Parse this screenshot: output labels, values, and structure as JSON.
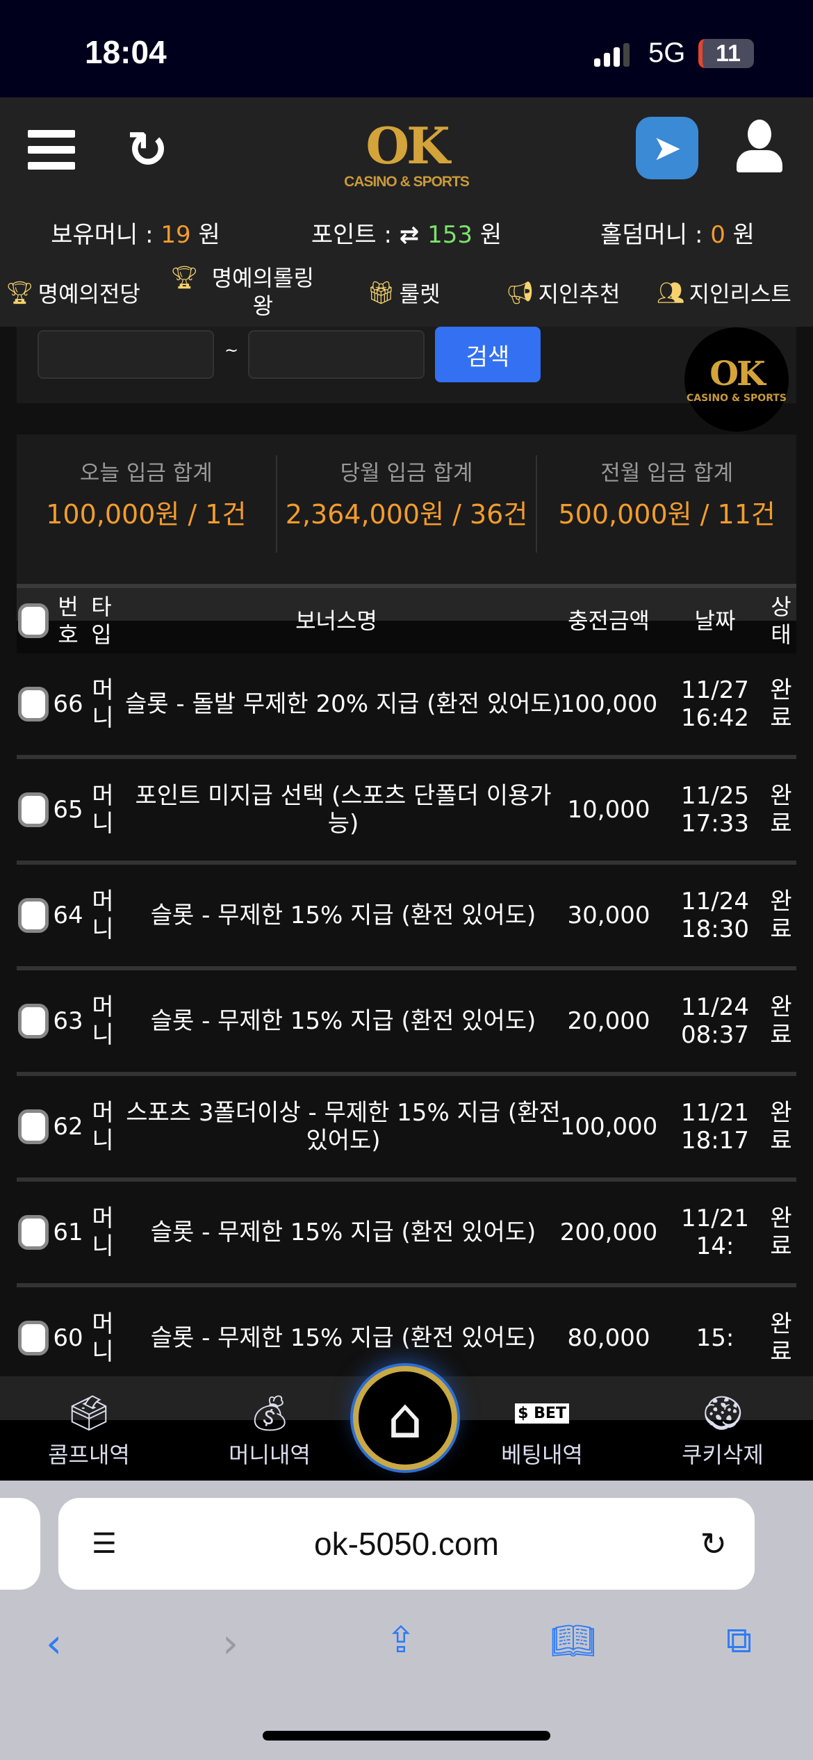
{
  "status_bar": {
    "time": "18:04",
    "network": "5G",
    "battery": "11"
  },
  "header": {
    "logo_text": "OK",
    "logo_sub": "CASINO & SPORTS"
  },
  "balances": [
    {
      "label": "보유머니 : ",
      "value": "19",
      "unit": " 원",
      "color": "#f39c2c"
    },
    {
      "label": "포인트 : ",
      "value": "153",
      "unit": " 원",
      "color": "#7be36b",
      "icon": "exchange-icon"
    },
    {
      "label": "홀덤머니 : ",
      "value": "0",
      "unit": " 원",
      "color": "#f39c2c"
    }
  ],
  "menu": [
    {
      "label": "명예의전당",
      "icon": "trophy-icon"
    },
    {
      "label": "명예의롤링왕",
      "icon": "trophy-icon"
    },
    {
      "label": "룰렛",
      "icon": "gift-icon"
    },
    {
      "label": "지인추천",
      "icon": "megaphone-icon"
    },
    {
      "label": "지인리스트",
      "icon": "users-icon"
    }
  ],
  "search": {
    "separator": "~",
    "button": "검색",
    "start_value": "",
    "end_value": ""
  },
  "summary": [
    {
      "label": "오늘 입금 합계",
      "value": "100,000원 / 1건"
    },
    {
      "label": "당월 입금 합계",
      "value": "2,364,000원 / 36건"
    },
    {
      "label": "전월 입금 합계",
      "value": "500,000원 / 11건"
    }
  ],
  "table": {
    "headers": {
      "no": "번호",
      "type": "타입",
      "name": "보너스명",
      "amount": "충전금액",
      "date": "날짜",
      "status": "상태"
    },
    "rows": [
      {
        "no": "66",
        "type": "머니",
        "name": "슬롯 - 돌발 무제한 20% 지급 (환전 있어도)",
        "amount": "100,000",
        "date": "11/27",
        "time": "16:42",
        "status": "완료"
      },
      {
        "no": "65",
        "type": "머니",
        "name": "포인트 미지급 선택 (스포츠 단폴더 이용가능)",
        "amount": "10,000",
        "date": "11/25",
        "time": "17:33",
        "status": "완료"
      },
      {
        "no": "64",
        "type": "머니",
        "name": "슬롯 - 무제한 15% 지급 (환전 있어도)",
        "amount": "30,000",
        "date": "11/24",
        "time": "18:30",
        "status": "완료"
      },
      {
        "no": "63",
        "type": "머니",
        "name": "슬롯 - 무제한 15% 지급 (환전 있어도)",
        "amount": "20,000",
        "date": "11/24",
        "time": "08:37",
        "status": "완료"
      },
      {
        "no": "62",
        "type": "머니",
        "name": "스포츠 3폴더이상 - 무제한 15% 지급 (환전 있어도)",
        "amount": "100,000",
        "date": "11/21",
        "time": "18:17",
        "status": "완료"
      },
      {
        "no": "61",
        "type": "머니",
        "name": "슬롯 - 무제한 15% 지급 (환전 있어도)",
        "amount": "200,000",
        "date": "11/21",
        "time": "14:",
        "status": "완료"
      },
      {
        "no": "60",
        "type": "머니",
        "name": "슬롯 - 무제한 15% 지급 (환전 있어도)",
        "amount": "80,000",
        "date": "",
        "time": "15:",
        "status": "완료"
      }
    ]
  },
  "bottom_nav": [
    {
      "label": "콤프내역",
      "icon": "vote-box-icon"
    },
    {
      "label": "머니내역",
      "icon": "money-bag-icon"
    },
    {
      "label": "베팅내역",
      "icon": "bet-slip-icon"
    },
    {
      "label": "쿠키삭제",
      "icon": "cookie-icon"
    }
  ],
  "browser": {
    "url": "ok-5050.com"
  }
}
